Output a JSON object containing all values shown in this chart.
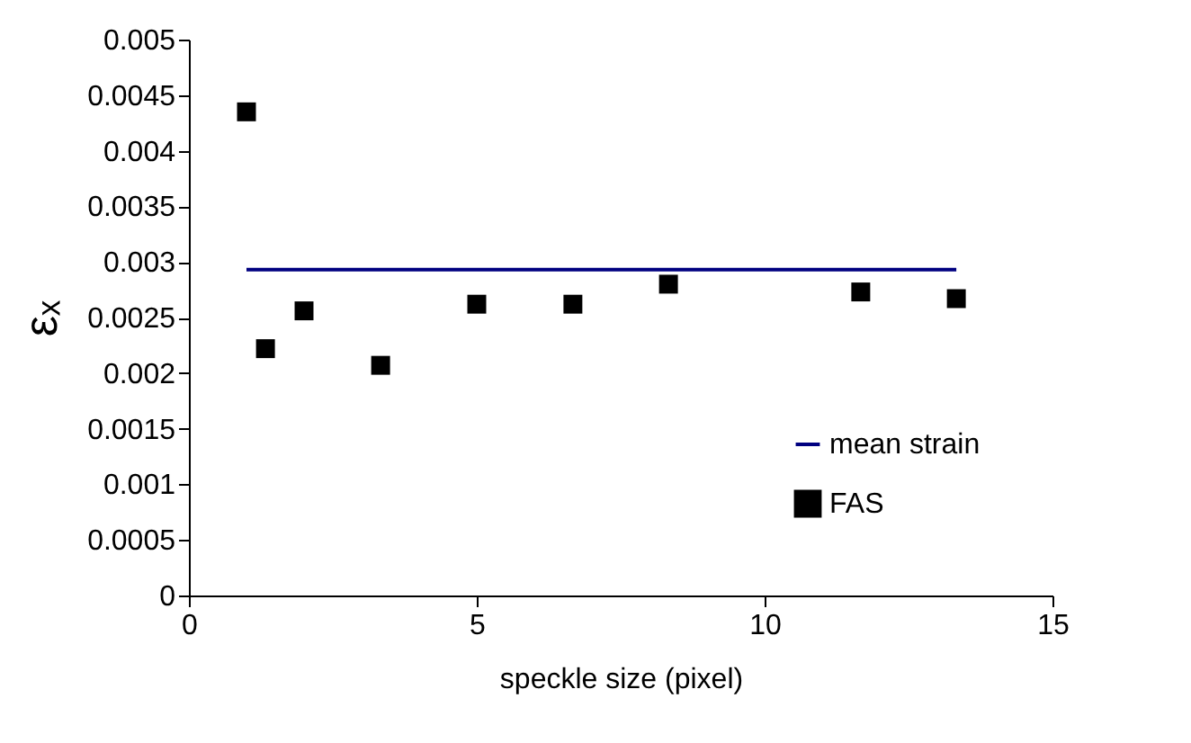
{
  "chart_data": {
    "type": "scatter",
    "xlabel": "speckle size (pixel)",
    "ylabel": "εₓ",
    "xlim": [
      0,
      15
    ],
    "xticks": [
      0,
      5,
      10,
      15
    ],
    "ylim": [
      0,
      0.005
    ],
    "yticks": [
      0,
      0.0005,
      0.001,
      0.0015,
      0.002,
      0.0025,
      0.003,
      0.0035,
      0.004,
      0.0045,
      0.005
    ],
    "grid": false,
    "legend": "bottom right",
    "marker": "square",
    "series": [
      {
        "name": "mean strain",
        "type": "line",
        "marker": "none",
        "color": "#000080",
        "x": [
          1,
          13.33
        ],
        "values": [
          0.00293,
          0.00293
        ]
      },
      {
        "name": "FAS",
        "color": "#000000",
        "x": [
          1,
          1.33,
          2,
          3.33,
          5,
          6.67,
          8.33,
          11.67,
          13.33
        ],
        "values": [
          0.00435,
          0.00222,
          0.00256,
          0.00207,
          0.00262,
          0.00262,
          0.0028,
          0.00273,
          0.00267
        ]
      }
    ]
  }
}
